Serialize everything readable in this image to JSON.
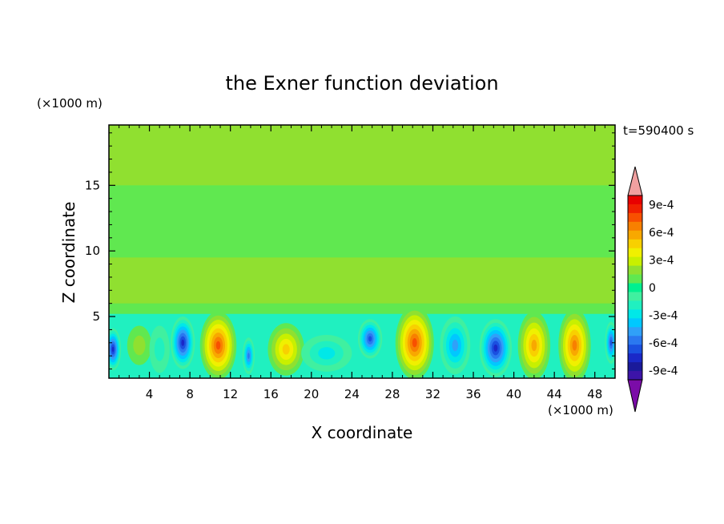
{
  "chart_data": {
    "type": "heatmap",
    "title": "the Exner function deviation",
    "xlabel": "X coordinate",
    "ylabel": "Z coordinate",
    "x_unit": "(×1000 m)",
    "y_unit": "(×1000 m)",
    "time_label": "t=590400 s",
    "xlim": [
      0,
      50
    ],
    "ylim": [
      0.3,
      19.6
    ],
    "x_ticks": [
      4,
      8,
      12,
      16,
      20,
      24,
      28,
      32,
      36,
      40,
      44,
      48
    ],
    "y_ticks": [
      5,
      10,
      15
    ],
    "colorbar": {
      "levels": [
        -0.0011,
        -0.001,
        -0.0009,
        -0.0008,
        -0.0007,
        -0.0006,
        -0.0005,
        -0.0004,
        -0.0003,
        -0.0002,
        -0.0001,
        0,
        0.0001,
        0.0002,
        0.0003,
        0.0004,
        0.0005,
        0.0006,
        0.0007,
        0.0008,
        0.0009,
        0.001,
        0.0011
      ],
      "colors": [
        "#7b0ca8",
        "#3c14a8",
        "#1a1a9a",
        "#1a28c8",
        "#1a50e0",
        "#2a78f0",
        "#30a0f8",
        "#00c8ff",
        "#00e8e8",
        "#20f0c0",
        "#40f0a0",
        "#00f090",
        "#60e850",
        "#90e030",
        "#c8f000",
        "#f0f000",
        "#f8d000",
        "#f8a800",
        "#f88000",
        "#f85000",
        "#f02000",
        "#e80000",
        "#f0a0a0"
      ],
      "tick_labels": [
        "9e-4",
        "6e-4",
        "3e-4",
        "0",
        "-3e-4",
        "-6e-4",
        "-9e-4"
      ],
      "tick_values": [
        0.0009,
        0.0006,
        0.0003,
        0,
        -0.0003,
        -0.0006,
        -0.0009
      ]
    },
    "cells": [
      {
        "x": 0.4,
        "z": 2.5,
        "value": -0.0008,
        "rx": 0.8,
        "rz": 1.6
      },
      {
        "x": 3.0,
        "z": 2.8,
        "value": 0.0002,
        "rx": 1.2,
        "rz": 1.5
      },
      {
        "x": 5.0,
        "z": 2.5,
        "value": -0.0002,
        "rx": 1.0,
        "rz": 1.8
      },
      {
        "x": 7.3,
        "z": 3.0,
        "value": -0.0008,
        "rx": 1.2,
        "rz": 2.0
      },
      {
        "x": 10.8,
        "z": 2.8,
        "value": 0.0008,
        "rx": 1.8,
        "rz": 2.6
      },
      {
        "x": 13.8,
        "z": 2.0,
        "value": -0.0006,
        "rx": 0.6,
        "rz": 1.4
      },
      {
        "x": 17.5,
        "z": 2.5,
        "value": 0.0005,
        "rx": 1.8,
        "rz": 2.0
      },
      {
        "x": 21.5,
        "z": 2.2,
        "value": -0.0003,
        "rx": 2.5,
        "rz": 1.4
      },
      {
        "x": 25.8,
        "z": 3.3,
        "value": -0.0007,
        "rx": 1.2,
        "rz": 1.5
      },
      {
        "x": 30.2,
        "z": 3.0,
        "value": 0.0008,
        "rx": 1.9,
        "rz": 2.8
      },
      {
        "x": 34.2,
        "z": 2.8,
        "value": -0.0005,
        "rx": 1.5,
        "rz": 2.2
      },
      {
        "x": 38.2,
        "z": 2.6,
        "value": -0.0008,
        "rx": 1.6,
        "rz": 2.2
      },
      {
        "x": 42.0,
        "z": 2.8,
        "value": 0.0006,
        "rx": 1.6,
        "rz": 2.6
      },
      {
        "x": 46.0,
        "z": 2.8,
        "value": 0.0007,
        "rx": 1.6,
        "rz": 2.8
      },
      {
        "x": 49.6,
        "z": 3.0,
        "value": -0.0007,
        "rx": 0.6,
        "rz": 1.6
      }
    ]
  }
}
